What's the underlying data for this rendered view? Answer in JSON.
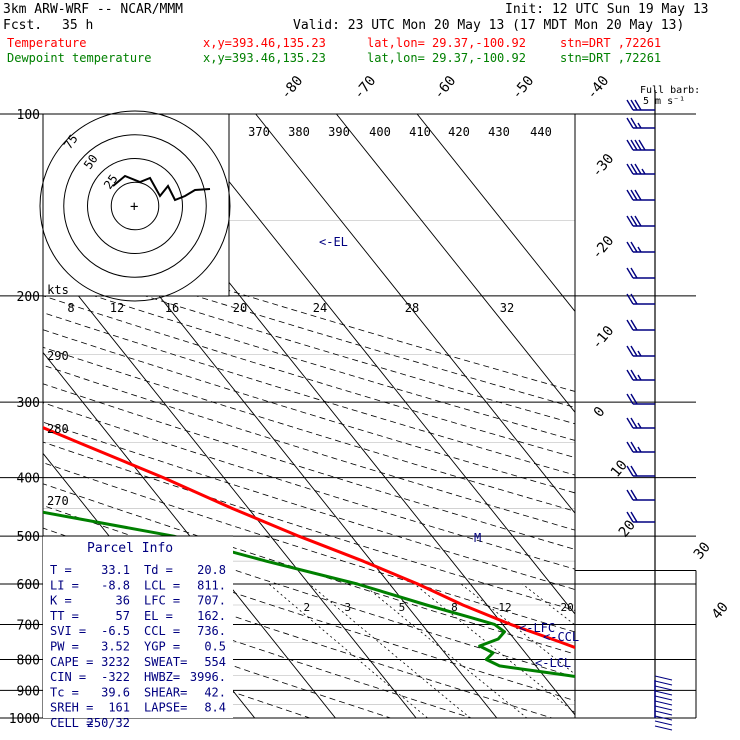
{
  "header": {
    "model": "3km ARW-WRF -- NCAR/MMM",
    "init": "Init: 12 UTC Sun 19 May 13",
    "fcst_label": "Fcst.",
    "fcst_value": "35 h",
    "valid": "Valid: 23 UTC Mon 20 May 13 (17 MDT Mon 20 May 13)",
    "legend": [
      {
        "name": "Temperature",
        "xy": "x,y=393.46,135.23",
        "latlon": "lat,lon= 29.37,-100.92",
        "stn": "stn=DRT ,72261",
        "color": "#ff0000"
      },
      {
        "name": "Dewpoint temperature",
        "xy": "x,y=393.46,135.23",
        "latlon": "lat,lon= 29.37,-100.92",
        "stn": "stn=DRT ,72261",
        "color": "#008000"
      }
    ],
    "barb_note_1": "Full barb:",
    "barb_note_2": "5 m s⁻¹"
  },
  "chart_data": {
    "type": "line",
    "diagram": "skew-T log-p",
    "pressure_axis": [
      "100",
      "200",
      "300",
      "400",
      "500",
      "600",
      "700",
      "800",
      "900",
      "1000"
    ],
    "theta_labels": [
      "370",
      "380",
      "390",
      "400",
      "410",
      "420",
      "430",
      "440"
    ],
    "theta_side_labels": [
      "290",
      "280",
      "270"
    ],
    "isotherm_labels": [
      "-80",
      "-70",
      "-60",
      "-50",
      "-40",
      "-30",
      "-20",
      "-10",
      "0",
      "10",
      "20",
      "30",
      "40"
    ],
    "mixing_ratio_labels": [
      "2",
      "3",
      "5",
      "8",
      "12",
      "20"
    ],
    "hodo_ring_labels": [
      "75",
      "50",
      "25"
    ],
    "hodo_speed_labels": [
      "kts",
      "8",
      "12",
      "16",
      "20",
      "24",
      "28",
      "32"
    ],
    "annotations": [
      "<-EL",
      "<-LFC",
      "<-CCL",
      "<-LCL",
      "M"
    ],
    "series": [
      {
        "name": "Temperature",
        "color": "#ff0000",
        "pressure": [
          1000,
          950,
          920,
          900,
          880,
          850,
          800,
          750,
          700,
          650,
          600,
          550,
          500,
          450,
          400,
          350,
          300,
          250,
          200,
          150,
          120,
          100
        ],
        "temp": [
          33.1,
          28.0,
          25.0,
          23.5,
          22.5,
          21.8,
          19.5,
          15.5,
          11.0,
          7.0,
          3.5,
          -1.0,
          -6.5,
          -12.0,
          -17.5,
          -24.5,
          -32.5,
          -41.5,
          -52.0,
          -60.0,
          -61.5,
          -65.0
        ]
      },
      {
        "name": "Dewpoint temperature",
        "color": "#008000",
        "pressure": [
          985,
          960,
          930,
          900,
          870,
          850,
          820,
          800,
          780,
          760,
          740,
          720,
          700,
          680,
          650,
          600,
          550,
          500,
          450,
          400,
          380,
          350,
          300,
          250,
          200,
          150,
          120,
          100
        ],
        "temp": [
          20.8,
          20.8,
          20.5,
          19.7,
          17.5,
          13.0,
          5.5,
          4.5,
          6.0,
          5.0,
          8.0,
          9.5,
          9.0,
          6.5,
          2.5,
          -4.0,
          -13.0,
          -22.0,
          -38.0,
          -47.0,
          -52.0,
          -54.0,
          -55.0,
          -60.0,
          -68.0,
          -80.0,
          -85.0,
          -89.0
        ]
      }
    ],
    "wind_barbs_side": "right"
  },
  "parcel": {
    "title": "Parcel Info",
    "rows": [
      [
        "T  =",
        "33.1",
        "Td =",
        "20.8"
      ],
      [
        "LI =",
        "-8.8",
        "LCL =",
        "811."
      ],
      [
        "K  =",
        "36",
        "LFC =",
        "707."
      ],
      [
        "TT =",
        "57",
        "EL  =",
        "162."
      ],
      [
        "SVI =",
        "-6.5",
        "CCL =",
        "736."
      ],
      [
        "PW =",
        "3.52",
        "YGP =",
        "0.5"
      ],
      [
        "CAPE =",
        "3232",
        "SWEAT=",
        "554"
      ],
      [
        "CIN =",
        "-322",
        "HWBZ=",
        "3996."
      ],
      [
        "Tc =",
        "39.6",
        "SHEAR=",
        "42."
      ],
      [
        "SREH =",
        "161",
        "LAPSE=",
        "8.4"
      ],
      [
        "CELL =",
        "250/32",
        "",
        ""
      ]
    ]
  }
}
